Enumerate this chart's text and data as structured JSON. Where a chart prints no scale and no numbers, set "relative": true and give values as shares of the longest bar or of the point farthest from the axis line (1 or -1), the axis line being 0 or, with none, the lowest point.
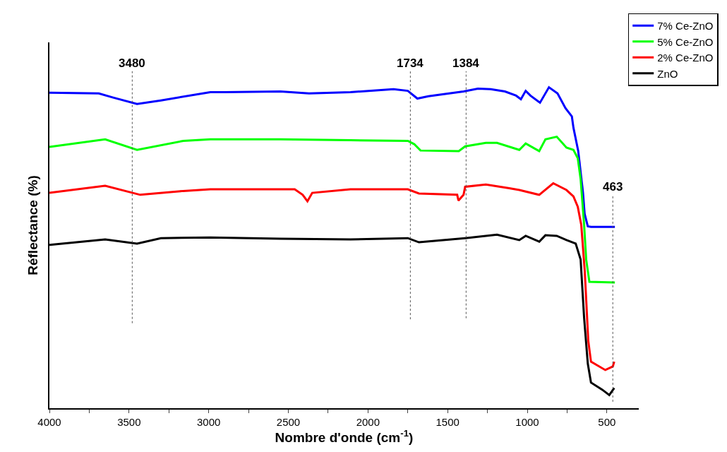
{
  "chart_data": {
    "type": "line",
    "relative": true,
    "xlabel": "Nombre d'onde (cm$^{-1}$)",
    "ylabel": "Réflectance (%)",
    "xlim": [
      4000,
      300
    ],
    "xticks": [
      4000,
      {
        "value": 3750,
        "label": null
      },
      3500,
      {
        "value": 3250,
        "label": null
      },
      3000,
      {
        "value": 2750,
        "label": null
      },
      2500,
      {
        "value": 2250,
        "label": null
      },
      2000,
      {
        "value": 1750,
        "label": null
      },
      1500,
      {
        "value": 1250,
        "label": null
      },
      1000,
      {
        "value": 750,
        "label": null
      },
      500
    ],
    "tick_labels": "x",
    "grid": false,
    "legend": "top right",
    "marker": "none",
    "line_style": "solid",
    "series": [
      {
        "name": "7% Ce-ZnO",
        "color": "#0000ff",
        "x": [
          4000,
          3690,
          3600,
          3450,
          3300,
          2990,
          2900,
          2550,
          2370,
          2110,
          1840,
          1750,
          1690,
          1620,
          1490,
          1400,
          1310,
          1230,
          1140,
          1070,
          1040,
          1010,
          980,
          920,
          864,
          810,
          760,
          720,
          710,
          680,
          650,
          640,
          620,
          600,
          450
        ],
        "values": [
          0.983,
          0.981,
          0.968,
          0.948,
          0.959,
          0.985,
          0.985,
          0.987,
          0.981,
          0.985,
          0.994,
          0.989,
          0.965,
          0.972,
          0.981,
          0.987,
          0.996,
          0.994,
          0.987,
          0.974,
          0.963,
          0.989,
          0.974,
          0.952,
          1.0,
          0.981,
          0.935,
          0.909,
          0.874,
          0.801,
          0.671,
          0.606,
          0.567,
          0.565,
          0.565
        ]
      },
      {
        "name": "5% Ce-ZnO",
        "color": "#00ff00",
        "x": [
          4000,
          3650,
          3450,
          3160,
          2990,
          2550,
          2110,
          1750,
          1710,
          1670,
          1430,
          1390,
          1260,
          1190,
          1050,
          1010,
          925,
          886,
          815,
          754,
          710,
          683,
          665,
          643,
          630,
          610,
          450
        ],
        "values": [
          0.814,
          0.838,
          0.805,
          0.833,
          0.838,
          0.838,
          0.835,
          0.833,
          0.823,
          0.803,
          0.801,
          0.816,
          0.827,
          0.827,
          0.805,
          0.825,
          0.801,
          0.838,
          0.846,
          0.812,
          0.805,
          0.779,
          0.714,
          0.571,
          0.463,
          0.394,
          0.392
        ]
      },
      {
        "name": "2% Ce-ZnO",
        "color": "#ff0000",
        "x": [
          4000,
          3650,
          3430,
          3160,
          2990,
          2460,
          2410,
          2380,
          2350,
          2110,
          1750,
          1680,
          1440,
          1432,
          1400,
          1390,
          1260,
          1120,
          1050,
          925,
          837,
          754,
          710,
          683,
          661,
          639,
          617,
          600,
          510,
          463,
          454
        ],
        "values": [
          0.671,
          0.693,
          0.665,
          0.677,
          0.682,
          0.682,
          0.665,
          0.645,
          0.671,
          0.682,
          0.682,
          0.669,
          0.665,
          0.647,
          0.665,
          0.69,
          0.697,
          0.686,
          0.68,
          0.665,
          0.701,
          0.68,
          0.66,
          0.628,
          0.571,
          0.426,
          0.21,
          0.145,
          0.119,
          0.13,
          0.145
        ]
      },
      {
        "name": "ZnO",
        "color": "#000000",
        "x": [
          4000,
          3650,
          3450,
          3300,
          2990,
          2550,
          2110,
          1750,
          1680,
          1390,
          1190,
          1050,
          1010,
          925,
          886,
          815,
          754,
          696,
          665,
          643,
          620,
          600,
          530,
          485,
          454
        ],
        "values": [
          0.509,
          0.526,
          0.513,
          0.53,
          0.532,
          0.528,
          0.526,
          0.53,
          0.517,
          0.53,
          0.541,
          0.524,
          0.537,
          0.519,
          0.539,
          0.537,
          0.524,
          0.513,
          0.463,
          0.281,
          0.139,
          0.08,
          0.058,
          0.041,
          0.063
        ]
      }
    ],
    "ref_lines": [
      {
        "axis": "x",
        "value": 3480,
        "label": "3480",
        "color": "#555555",
        "line_style": "dotted"
      },
      {
        "axis": "x",
        "value": 1734,
        "label": "1734",
        "color": "#555555",
        "line_style": "dotted"
      },
      {
        "axis": "x",
        "value": 1384,
        "label": "1384",
        "color": "#555555",
        "line_style": "dotted"
      },
      {
        "axis": "x",
        "value": 463,
        "label": "463",
        "color": "#555555",
        "line_style": "dotted"
      }
    ]
  }
}
